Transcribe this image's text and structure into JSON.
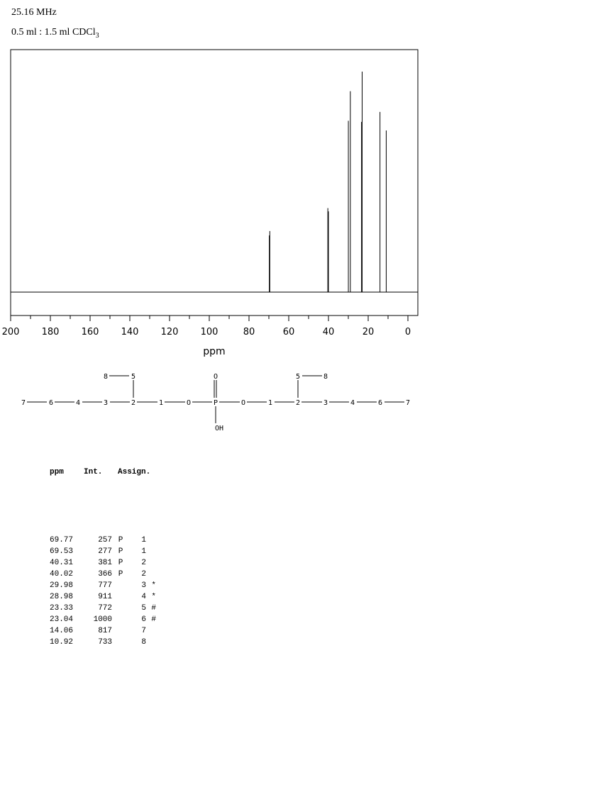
{
  "header": {
    "frequency": "25.16 MHz",
    "sample_prefix": "0.5 ml : 1.5 ml CDCl",
    "sample_subscript": "3"
  },
  "chart_data": {
    "type": "line",
    "title": "",
    "xlabel": "ppm",
    "ylabel": "",
    "xlim": [
      200,
      -5
    ],
    "ylim": [
      0,
      1000
    ],
    "x_reversed": true,
    "grid": false,
    "x_ticks": [
      200,
      180,
      160,
      140,
      120,
      100,
      80,
      60,
      40,
      20,
      0
    ],
    "peaks": [
      {
        "ppm": 69.77,
        "intensity": 257
      },
      {
        "ppm": 69.53,
        "intensity": 277
      },
      {
        "ppm": 40.31,
        "intensity": 381
      },
      {
        "ppm": 40.02,
        "intensity": 366
      },
      {
        "ppm": 29.98,
        "intensity": 777
      },
      {
        "ppm": 28.98,
        "intensity": 911
      },
      {
        "ppm": 23.33,
        "intensity": 772
      },
      {
        "ppm": 23.04,
        "intensity": 1000
      },
      {
        "ppm": 14.06,
        "intensity": 817
      },
      {
        "ppm": 10.92,
        "intensity": 733
      }
    ]
  },
  "structure": {
    "p": "P",
    "o": "O",
    "oh": "OH",
    "n1": "1",
    "n2": "2",
    "n3": "3",
    "n4": "4",
    "n5": "5",
    "n6": "6",
    "n7": "7",
    "n8": "8"
  },
  "table": {
    "headers": [
      "ppm",
      "Int.",
      "Assign."
    ],
    "rows": [
      {
        "ppm": "69.77",
        "int": "257",
        "p": "P",
        "assign": "1",
        "mark": ""
      },
      {
        "ppm": "69.53",
        "int": "277",
        "p": "P",
        "assign": "1",
        "mark": ""
      },
      {
        "ppm": "40.31",
        "int": "381",
        "p": "P",
        "assign": "2",
        "mark": ""
      },
      {
        "ppm": "40.02",
        "int": "366",
        "p": "P",
        "assign": "2",
        "mark": ""
      },
      {
        "ppm": "29.98",
        "int": "777",
        "p": "",
        "assign": "3",
        "mark": "*"
      },
      {
        "ppm": "28.98",
        "int": "911",
        "p": "",
        "assign": "4",
        "mark": "*"
      },
      {
        "ppm": "23.33",
        "int": "772",
        "p": "",
        "assign": "5",
        "mark": "#"
      },
      {
        "ppm": "23.04",
        "int": "1000",
        "p": "",
        "assign": "6",
        "mark": "#"
      },
      {
        "ppm": "14.06",
        "int": "817",
        "p": "",
        "assign": "7",
        "mark": ""
      },
      {
        "ppm": "10.92",
        "int": "733",
        "p": "",
        "assign": "8",
        "mark": ""
      }
    ]
  }
}
